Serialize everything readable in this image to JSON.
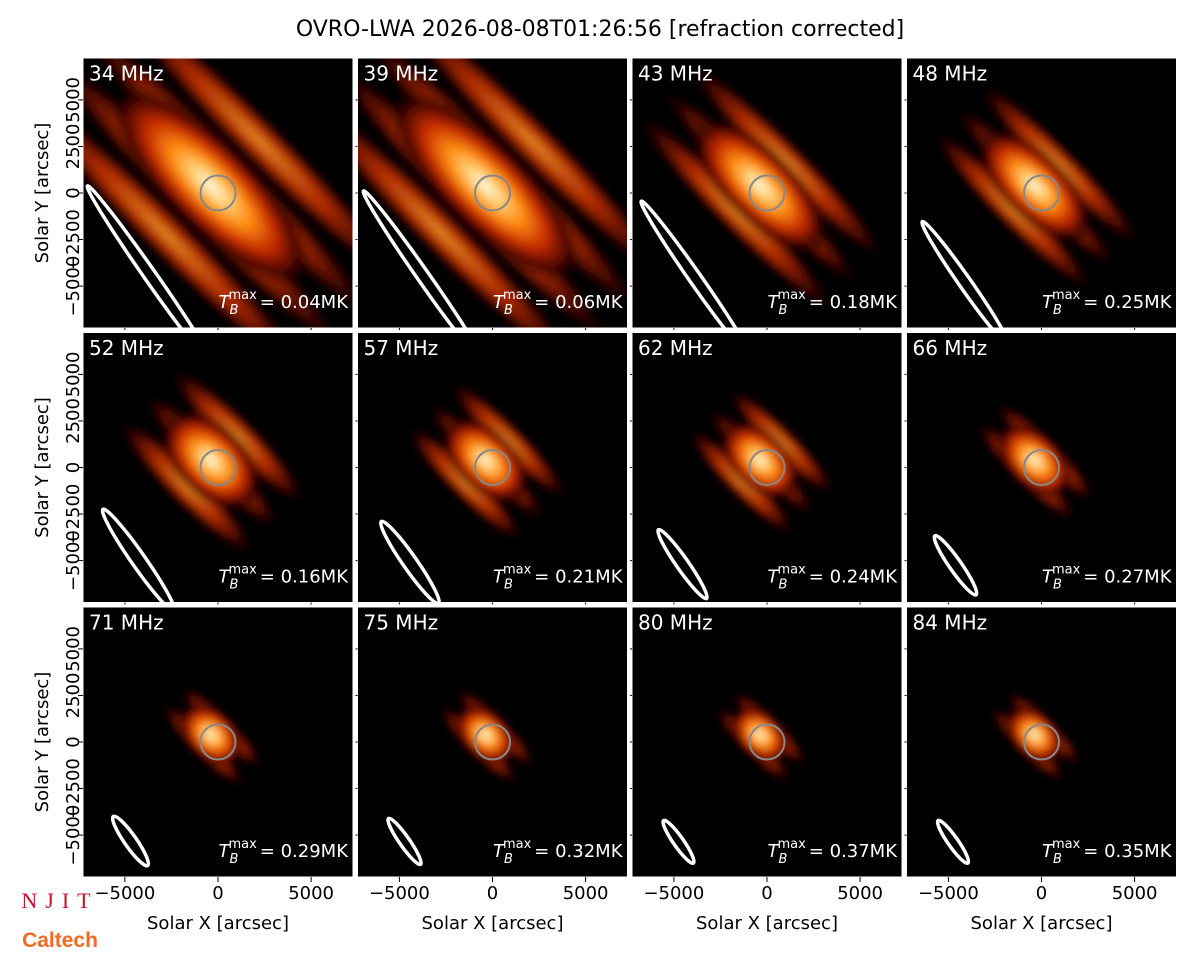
{
  "title": "OVRO-LWA 2026-08-08T01:26:56 [refraction corrected]",
  "logos": [
    "NJIT",
    "Caltech"
  ],
  "chart_data": [
    {
      "type": "image",
      "title": "34 MHz",
      "annotation": {
        "symbol": "T",
        "sub": "B",
        "sup": "max",
        "text": "= 0.04MK"
      },
      "ylabel": "Solar Y [arcsec]",
      "xlim": [
        -7250,
        7250
      ],
      "ylim": [
        -7250,
        7250
      ],
      "xticks": [
        {
          "value": -5000,
          "label": "−5000"
        },
        0,
        5000
      ],
      "yticks": [
        {
          "value": -5000,
          "label": "−5000"
        },
        {
          "value": -2500,
          "label": "−2500"
        },
        0,
        2500,
        5000
      ]
    },
    {
      "type": "image",
      "title": "39 MHz",
      "annotation": {
        "symbol": "T",
        "sub": "B",
        "sup": "max",
        "text": "= 0.06MK"
      },
      "xlim": [
        -7250,
        7250
      ],
      "ylim": [
        -7250,
        7250
      ],
      "xticks": [
        {
          "value": -5000,
          "label": "−5000"
        },
        0,
        5000
      ],
      "yticks": [
        {
          "value": -5000,
          "label": "−5000"
        },
        {
          "value": -2500,
          "label": "−2500"
        },
        0,
        2500,
        5000
      ]
    },
    {
      "type": "image",
      "title": "43 MHz",
      "annotation": {
        "symbol": "T",
        "sub": "B",
        "sup": "max",
        "text": "= 0.18MK"
      },
      "xlim": [
        -7250,
        7250
      ],
      "ylim": [
        -7250,
        7250
      ],
      "xticks": [
        {
          "value": -5000,
          "label": "−5000"
        },
        0,
        5000
      ],
      "yticks": [
        {
          "value": -5000,
          "label": "−5000"
        },
        {
          "value": -2500,
          "label": "−2500"
        },
        0,
        2500,
        5000
      ]
    },
    {
      "type": "image",
      "title": "48 MHz",
      "annotation": {
        "symbol": "T",
        "sub": "B",
        "sup": "max",
        "text": "= 0.25MK"
      },
      "xlim": [
        -7250,
        7250
      ],
      "ylim": [
        -7250,
        7250
      ],
      "xticks": [
        {
          "value": -5000,
          "label": "−5000"
        },
        0,
        5000
      ],
      "yticks": [
        {
          "value": -5000,
          "label": "−5000"
        },
        {
          "value": -2500,
          "label": "−2500"
        },
        0,
        2500,
        5000
      ]
    },
    {
      "type": "image",
      "title": "52 MHz",
      "annotation": {
        "symbol": "T",
        "sub": "B",
        "sup": "max",
        "text": "= 0.16MK"
      },
      "ylabel": "Solar Y [arcsec]",
      "xlim": [
        -7250,
        7250
      ],
      "ylim": [
        -7250,
        7250
      ],
      "xticks": [
        {
          "value": -5000,
          "label": "−5000"
        },
        0,
        5000
      ],
      "yticks": [
        {
          "value": -5000,
          "label": "−5000"
        },
        {
          "value": -2500,
          "label": "−2500"
        },
        0,
        2500,
        5000
      ]
    },
    {
      "type": "image",
      "title": "57 MHz",
      "annotation": {
        "symbol": "T",
        "sub": "B",
        "sup": "max",
        "text": "= 0.21MK"
      },
      "xlim": [
        -7250,
        7250
      ],
      "ylim": [
        -7250,
        7250
      ],
      "xticks": [
        {
          "value": -5000,
          "label": "−5000"
        },
        0,
        5000
      ],
      "yticks": [
        {
          "value": -5000,
          "label": "−5000"
        },
        {
          "value": -2500,
          "label": "−2500"
        },
        0,
        2500,
        5000
      ]
    },
    {
      "type": "image",
      "title": "62 MHz",
      "annotation": {
        "symbol": "T",
        "sub": "B",
        "sup": "max",
        "text": "= 0.24MK"
      },
      "xlim": [
        -7250,
        7250
      ],
      "ylim": [
        -7250,
        7250
      ],
      "xticks": [
        {
          "value": -5000,
          "label": "−5000"
        },
        0,
        5000
      ],
      "yticks": [
        {
          "value": -5000,
          "label": "−5000"
        },
        {
          "value": -2500,
          "label": "−2500"
        },
        0,
        2500,
        5000
      ]
    },
    {
      "type": "image",
      "title": "66 MHz",
      "annotation": {
        "symbol": "T",
        "sub": "B",
        "sup": "max",
        "text": "= 0.27MK"
      },
      "xlim": [
        -7250,
        7250
      ],
      "ylim": [
        -7250,
        7250
      ],
      "xticks": [
        {
          "value": -5000,
          "label": "−5000"
        },
        0,
        5000
      ],
      "yticks": [
        {
          "value": -5000,
          "label": "−5000"
        },
        {
          "value": -2500,
          "label": "−2500"
        },
        0,
        2500,
        5000
      ]
    },
    {
      "type": "image",
      "title": "71 MHz",
      "annotation": {
        "symbol": "T",
        "sub": "B",
        "sup": "max",
        "text": "= 0.29MK"
      },
      "xlabel": "Solar X [arcsec]",
      "ylabel": "Solar Y [arcsec]",
      "xlim": [
        -7250,
        7250
      ],
      "ylim": [
        -7250,
        7250
      ],
      "xticks": [
        {
          "value": -5000,
          "label": "−5000"
        },
        0,
        5000
      ],
      "yticks": [
        {
          "value": -5000,
          "label": "−5000"
        },
        {
          "value": -2500,
          "label": "−2500"
        },
        0,
        2500,
        5000
      ]
    },
    {
      "type": "image",
      "title": "75 MHz",
      "annotation": {
        "symbol": "T",
        "sub": "B",
        "sup": "max",
        "text": "= 0.32MK"
      },
      "xlabel": "Solar X [arcsec]",
      "xlim": [
        -7250,
        7250
      ],
      "ylim": [
        -7250,
        7250
      ],
      "xticks": [
        {
          "value": -5000,
          "label": "−5000"
        },
        0,
        5000
      ],
      "yticks": [
        {
          "value": -5000,
          "label": "−5000"
        },
        {
          "value": -2500,
          "label": "−2500"
        },
        0,
        2500,
        5000
      ]
    },
    {
      "type": "image",
      "title": "80 MHz",
      "annotation": {
        "symbol": "T",
        "sub": "B",
        "sup": "max",
        "text": "= 0.37MK"
      },
      "xlabel": "Solar X [arcsec]",
      "xlim": [
        -7250,
        7250
      ],
      "ylim": [
        -7250,
        7250
      ],
      "xticks": [
        {
          "value": -5000,
          "label": "−5000"
        },
        0,
        5000
      ],
      "yticks": [
        {
          "value": -5000,
          "label": "−5000"
        },
        {
          "value": -2500,
          "label": "−2500"
        },
        0,
        2500,
        5000
      ]
    },
    {
      "type": "image",
      "title": "84 MHz",
      "annotation": {
        "symbol": "T",
        "sub": "B",
        "sup": "max",
        "text": "= 0.35MK"
      },
      "xlabel": "Solar X [arcsec]",
      "xlim": [
        -7250,
        7250
      ],
      "ylim": [
        -7250,
        7250
      ],
      "xticks": [
        {
          "value": -5000,
          "label": "−5000"
        },
        0,
        5000
      ],
      "yticks": [
        {
          "value": -5000,
          "label": "−5000"
        },
        {
          "value": -2500,
          "label": "−2500"
        },
        0,
        2500,
        5000
      ]
    }
  ]
}
